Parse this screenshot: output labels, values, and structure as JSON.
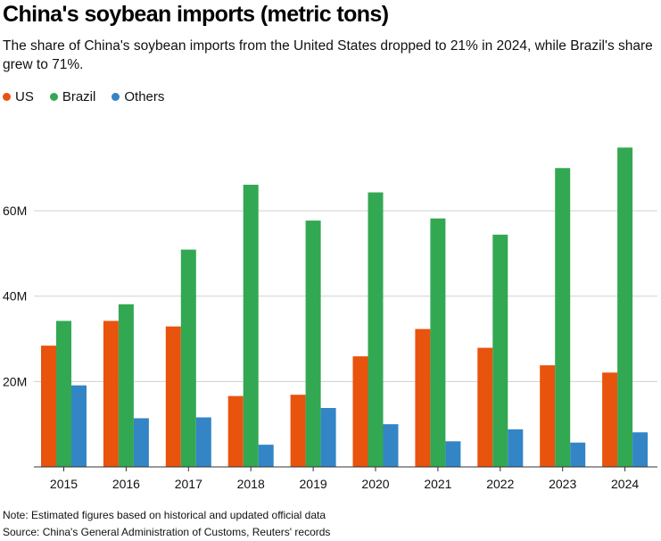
{
  "chart_data": {
    "type": "bar",
    "title": "China's soybean imports (metric tons)",
    "subtitle": "The share of China's soybean imports from the United States dropped to 21% in 2024, while Brazil's share grew to 71%.",
    "xlabel": "",
    "ylabel": "",
    "categories": [
      "2015",
      "2016",
      "2017",
      "2018",
      "2019",
      "2020",
      "2021",
      "2022",
      "2023",
      "2024"
    ],
    "series": [
      {
        "name": "US",
        "color": "#e8530e",
        "values": [
          28.4,
          34.2,
          32.9,
          16.6,
          16.9,
          25.9,
          32.3,
          27.9,
          23.8,
          22.1
        ]
      },
      {
        "name": "Brazil",
        "color": "#33a852",
        "values": [
          34.2,
          38.1,
          50.9,
          66.1,
          57.7,
          64.3,
          58.2,
          54.4,
          70.0,
          74.8
        ]
      },
      {
        "name": "Others",
        "color": "#3385c6",
        "values": [
          19.1,
          11.4,
          11.6,
          5.2,
          13.8,
          10.0,
          6.0,
          8.8,
          5.7,
          8.1
        ]
      }
    ],
    "ylim": [
      0,
      78
    ],
    "yticks": [
      20,
      40,
      60
    ],
    "ytick_labels": [
      "20M",
      "40M",
      "60M"
    ],
    "grid": true,
    "legend_position": "top-left"
  },
  "notes": {
    "note": "Note: Estimated figures based on historical and updated official data",
    "source": "Source: China's General Administration of Customs, Reuters' records"
  }
}
